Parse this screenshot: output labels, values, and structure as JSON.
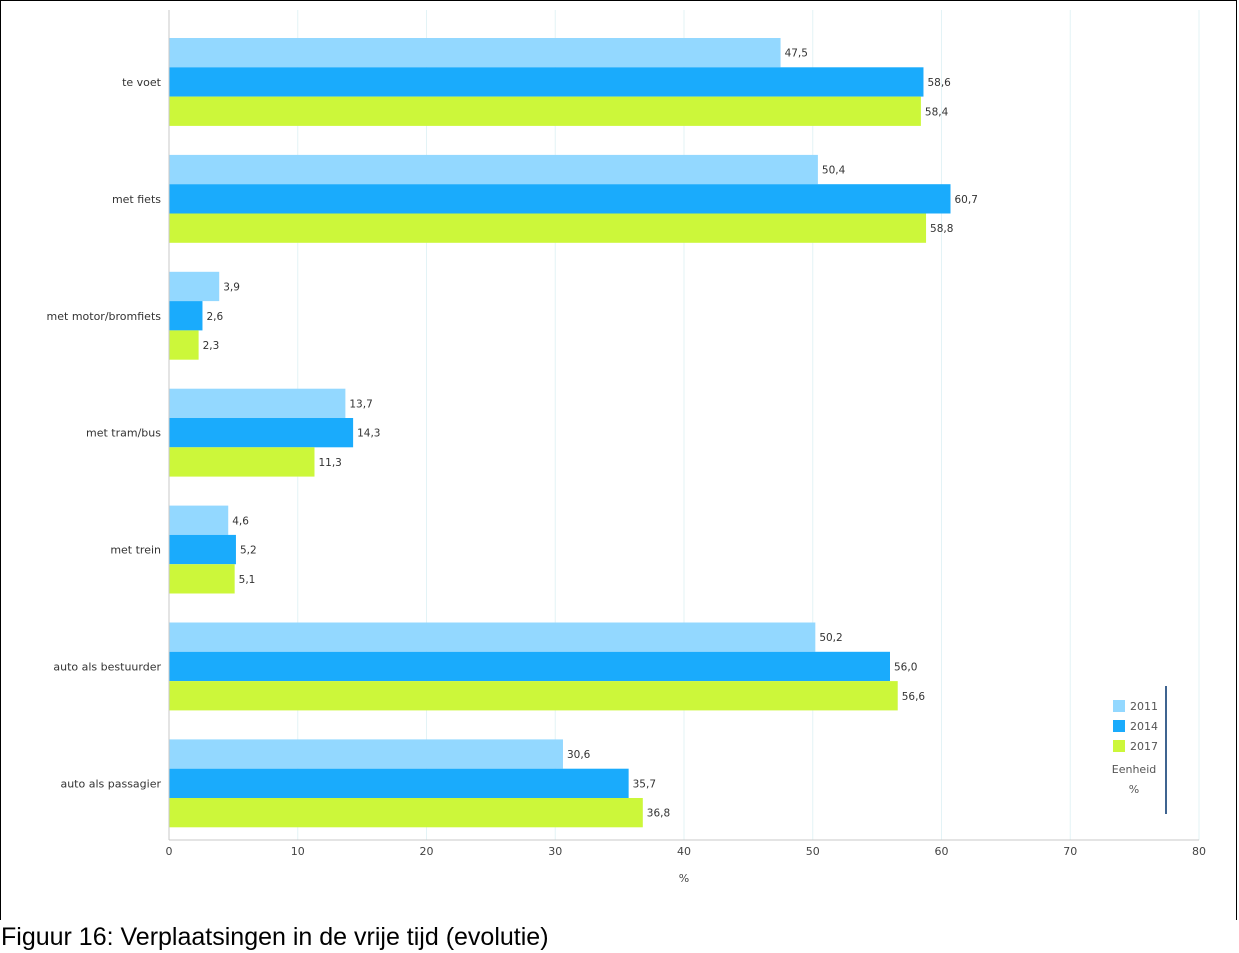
{
  "caption": "Figuur 16: Verplaatsingen in de vrije tijd (evolutie)",
  "chart_data": {
    "type": "bar",
    "orientation": "horizontal",
    "categories": [
      "te voet",
      "met fiets",
      "met motor/bromfiets",
      "met tram/bus",
      "met trein",
      "auto als bestuurder",
      "auto als passagier"
    ],
    "series": [
      {
        "name": "2011",
        "color": "#93d8ff",
        "values": [
          47.5,
          50.4,
          3.9,
          13.7,
          4.6,
          50.2,
          30.6
        ],
        "labels": [
          "47,5",
          "50,4",
          "3,9",
          "13,7",
          "4,6",
          "50,2",
          "30,6"
        ]
      },
      {
        "name": "2014",
        "color": "#1aabfc",
        "values": [
          58.6,
          60.7,
          2.6,
          14.3,
          5.2,
          56.0,
          35.7
        ],
        "labels": [
          "58,6",
          "60,7",
          "2,6",
          "14,3",
          "5,2",
          "56,0",
          "35,7"
        ]
      },
      {
        "name": "2017",
        "color": "#ccf73a",
        "values": [
          58.4,
          58.8,
          2.3,
          11.3,
          5.1,
          56.6,
          36.8
        ],
        "labels": [
          "58,4",
          "58,8",
          "2,3",
          "11,3",
          "5,1",
          "56,6",
          "36,8"
        ]
      }
    ],
    "xlabel": "%",
    "xlim": [
      0,
      80
    ],
    "xticks": [
      0,
      10,
      20,
      30,
      40,
      50,
      60,
      70,
      80
    ],
    "grid": "vertical",
    "legend": {
      "position": "bottom-right",
      "unit_label": "Eenheid",
      "unit_value": "%"
    }
  }
}
